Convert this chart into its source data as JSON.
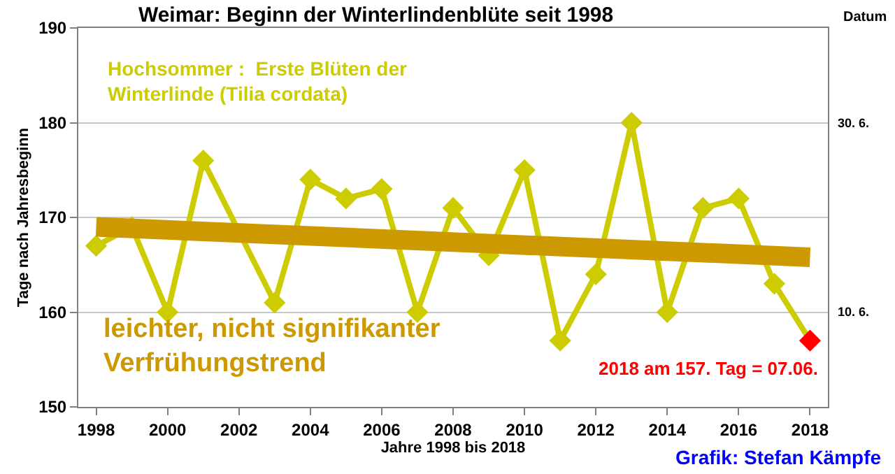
{
  "chart_data": {
    "type": "line",
    "title": "Weimar: Beginn der Winterlindenblüte seit 1998",
    "xlabel": "Jahre 1998 bis 2018",
    "ylabel": "Tage nach Jahresbeginn",
    "x": [
      1998,
      1999,
      2000,
      2001,
      2002,
      2003,
      2004,
      2005,
      2006,
      2007,
      2008,
      2009,
      2010,
      2011,
      2012,
      2013,
      2014,
      2015,
      2016,
      2017,
      2018
    ],
    "series": [
      {
        "color": "#cccc00",
        "colors": [
          "#cccc00",
          "#cccc00",
          "#cccc00",
          "#cccc00",
          "#cccc00",
          "#cccc00",
          "#cccc00",
          "#cccc00",
          "#cccc00",
          "#cccc00",
          "#cccc00",
          "#cccc00",
          "#cccc00",
          "#cccc00",
          "#cccc00",
          "#cccc00",
          "#cccc00",
          "#cccc00",
          "#cccc00",
          "#cccc00",
          "#ff0000"
        ],
        "values": [
          167,
          169,
          160,
          176,
          null,
          161,
          174,
          172,
          173,
          160,
          171,
          166,
          175,
          157,
          164,
          180,
          160,
          171,
          172,
          163,
          157
        ]
      },
      {
        "type": "line",
        "color": "#cc9900",
        "marker": "none",
        "x": [
          1998,
          2018
        ],
        "values": [
          169,
          165.8
        ]
      }
    ],
    "xlim": [
      1997.5,
      2018.5
    ],
    "xticks": [
      1998,
      2000,
      2002,
      2004,
      2006,
      2008,
      2010,
      2012,
      2014,
      2016,
      2018
    ],
    "ylim": [
      150,
      190
    ],
    "yticks": [
      150,
      160,
      170,
      180,
      190
    ],
    "grid": "y",
    "marker": "diamond",
    "annotations": [
      "Hochsommer :  Erste Blüten der\nWinterlinde (Tilia cordata)",
      "leichter, nicht signifikanter\nVerfrühungstrend",
      {
        "text": "2018 am 157. Tag = 07.06.",
        "x": 2018,
        "y": 157
      },
      "Grafik: Stefan Kämpfe",
      "Datum",
      "30. 6.",
      "10. 6."
    ]
  }
}
